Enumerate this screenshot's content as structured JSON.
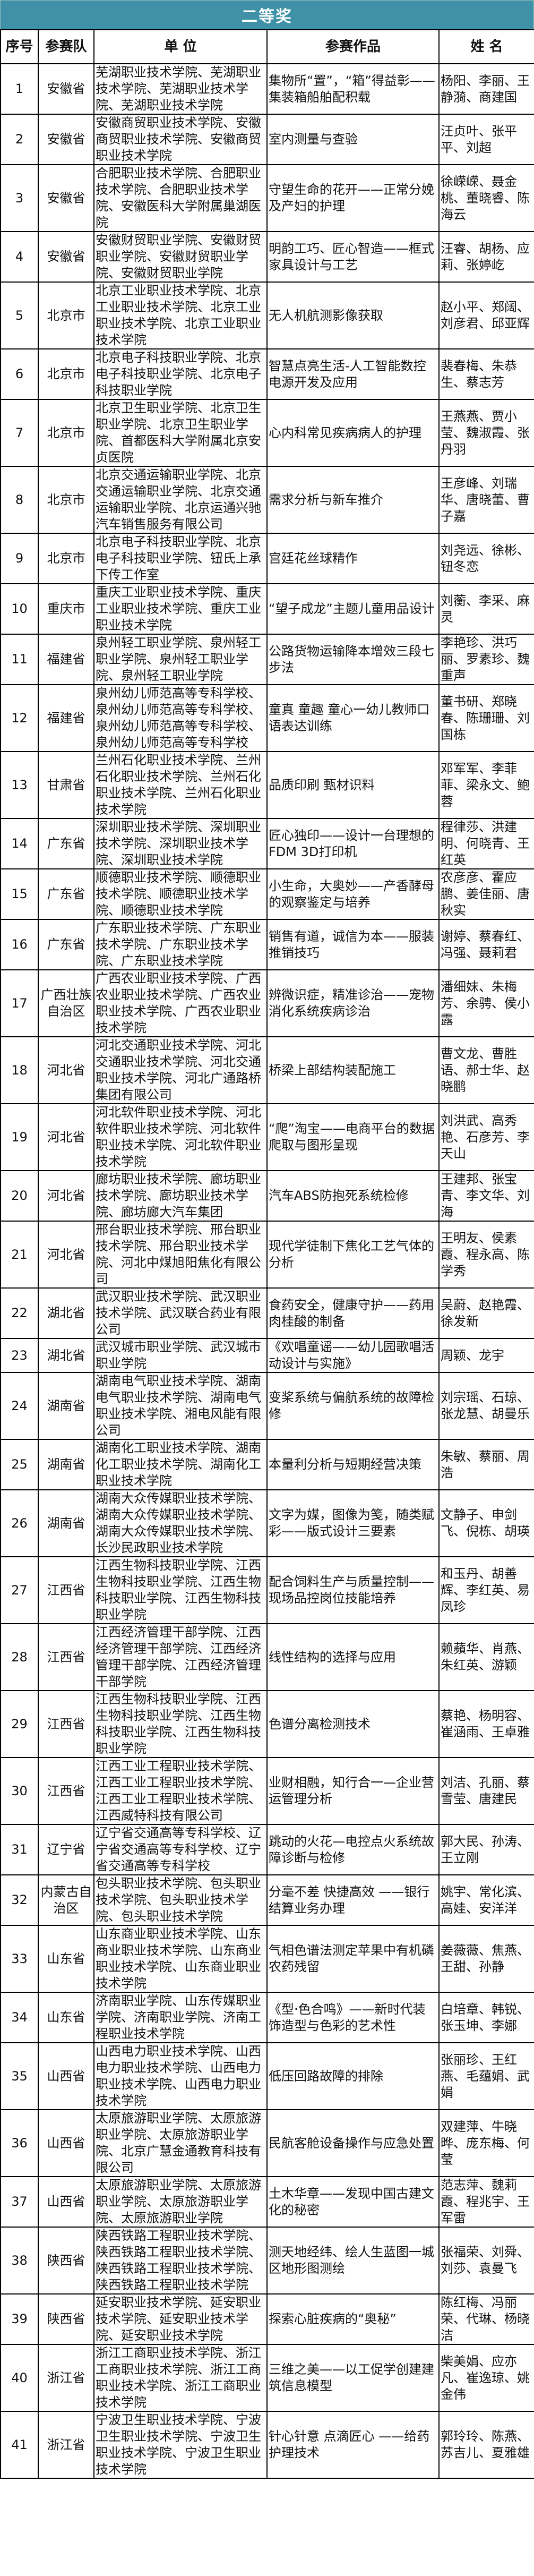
{
  "title": "二等奖",
  "header": {
    "seq": "序号",
    "team": "参赛队",
    "unit": "单 位",
    "work": "参赛作品",
    "names": "姓 名"
  },
  "colors": {
    "title_bar": "#3e91a7",
    "title_text": "#ffffff",
    "border": "#000000"
  },
  "rows": [
    {
      "seq": "1",
      "team": "安徽省",
      "unit": "芜湖职业技术学院、芜湖职业技术学院、芜湖职业技术学院、芜湖职业技术学院",
      "work": "集物所“置”，“箱”得益彰——集装箱船舶配积载",
      "names": "杨阳、李丽、王静漪、商建国"
    },
    {
      "seq": "2",
      "team": "安徽省",
      "unit": "安徽商贸职业技术学院、安徽商贸职业技术学院、安徽商贸职业技术学院",
      "work": "室内测量与查验",
      "names": "汪贞叶、张平平、刘超"
    },
    {
      "seq": "3",
      "team": "安徽省",
      "unit": "合肥职业技术学院、合肥职业技术学院、合肥职业技术学院、安徽医科大学附属巢湖医院",
      "work": "守望生命的花开——正常分娩及产妇的护理",
      "names": "徐嵘嵘、聂金桃、董晓睿、陈海云"
    },
    {
      "seq": "4",
      "team": "安徽省",
      "unit": "安徽财贸职业学院、安徽财贸职业学院、安徽财贸职业学院、安徽财贸职业学院",
      "work": "明韵工巧、匠心智造——框式家具设计与工艺",
      "names": "汪睿、胡杨、应莉、张婷屹"
    },
    {
      "seq": "5",
      "team": "北京市",
      "unit": "北京工业职业技术学院、北京工业职业技术学院、北京工业职业技术学院、北京工业职业技术学院",
      "work": "无人机航测影像获取",
      "names": "赵小平、郑阔、刘彦君、邱亚辉"
    },
    {
      "seq": "6",
      "team": "北京市",
      "unit": "北京电子科技职业学院、北京电子科技职业学院、北京电子科技职业学院",
      "work": "智慧点亮生活-人工智能数控电源开发及应用",
      "names": "裴春梅、朱恭生、蔡志芳"
    },
    {
      "seq": "7",
      "team": "北京市",
      "unit": "北京卫生职业学院、北京卫生职业学院、北京卫生职业学院、首都医科大学附属北京安贞医院",
      "work": "心内科常见疾病病人的护理",
      "names": "王燕燕、贾小莹、魏淑霞、张丹羽"
    },
    {
      "seq": "8",
      "team": "北京市",
      "unit": "北京交通运输职业学院、北京交通运输职业学院、北京交通运输职业学院、北京运通兴驰汽车销售服务有限公司",
      "work": "需求分析与新车推介",
      "names": "王彦峰、刘瑞华、唐晓蕾、曹子嘉"
    },
    {
      "seq": "9",
      "team": "北京市",
      "unit": "北京电子科技职业学院、北京电子科技职业学院、钮氏上承下传工作室",
      "work": "宫廷花丝球精作",
      "names": "刘尧远、徐彬、钮冬恋"
    },
    {
      "seq": "10",
      "team": "重庆市",
      "unit": "重庆工业职业技术学院、重庆工业职业技术学院、重庆工业职业技术学院",
      "work": "“望子成龙”主题儿童用品设计",
      "names": "刘蘅、李采、麻灵"
    },
    {
      "seq": "11",
      "team": "福建省",
      "unit": "泉州轻工职业学院、泉州轻工职业学院、泉州轻工职业学院、泉州轻工职业学院",
      "work": "公路货物运输降本增效三段七步法",
      "names": "李艳珍、洪巧丽、罗素珍、魏重声"
    },
    {
      "seq": "12",
      "team": "福建省",
      "unit": "泉州幼儿师范高等专科学校、泉州幼儿师范高等专科学校、泉州幼儿师范高等专科学校、泉州幼儿师范高等专科学校",
      "work": "童真 童趣 童心一幼儿教师口语表达训练",
      "names": "董书研、郑晓春、陈珊珊、刘国栋"
    },
    {
      "seq": "13",
      "team": "甘肃省",
      "unit": "兰州石化职业技术学院、兰州石化职业技术学院、兰州石化职业技术学院、兰州石化职业技术学院",
      "work": "品质印刷  甄材识料",
      "names": "邓军军、李菲菲、梁永文、鲍蓉"
    },
    {
      "seq": "14",
      "team": "广东省",
      "unit": "深圳职业技术学院、深圳职业技术学院、深圳职业技术学院、深圳职业技术学院",
      "work": "匠心独印——设计一台理想的FDM 3D打印机",
      "names": "程律莎、洪建明、何晓青、王红英"
    },
    {
      "seq": "15",
      "team": "广东省",
      "unit": "顺德职业技术学院、顺德职业技术学院、顺德职业技术学院、顺德职业技术学院",
      "work": "小生命，大奥妙——产香酵母的观察鉴定与培养",
      "names": "农彦彦、霍应鹏、姜佳丽、唐秋实"
    },
    {
      "seq": "16",
      "team": "广东省",
      "unit": "广东职业技术学院、广东职业技术学院、广东职业技术学院、广东职业技术学院",
      "work": "销售有道，诚信为本——服装推销技巧",
      "names": "谢婷、蔡春红、冯强、聂莉君"
    },
    {
      "seq": "17",
      "team": "广西壮族自治区",
      "unit": "广西农业职业技术学院、广西农业职业技术学院、广西农业职业技术学院、广西农业职业技术学院",
      "work": "辨微识症，精准诊治——宠物消化系统疾病诊治",
      "names": "潘细妹、朱梅芳、余骋、侯小露"
    },
    {
      "seq": "18",
      "team": "河北省",
      "unit": "河北交通职业技术学院、河北交通职业技术学院、河北交通职业技术学院、河北广通路桥集团有限公司",
      "work": "桥梁上部结构装配施工",
      "names": "曹文龙、曹胜语、郝士华、赵晓鹏"
    },
    {
      "seq": "19",
      "team": "河北省",
      "unit": "河北软件职业技术学院、河北软件职业技术学院、河北软件职业技术学院、河北软件职业技术学院",
      "work": "“爬”淘宝——电商平台的数据爬取与图形呈现",
      "names": "刘洪武、高秀艳、石彦芳、李天山"
    },
    {
      "seq": "20",
      "team": "河北省",
      "unit": "廊坊职业技术学院、廊坊职业技术学院、廊坊职业技术学院、廊坊廊大汽车集团",
      "work": "汽车ABS防抱死系统检修",
      "names": "王建邦、张宝青、李文华、刘海"
    },
    {
      "seq": "21",
      "team": "河北省",
      "unit": "邢台职业技术学院、邢台职业技术学院、邢台职业技术学院、河北中煤旭阳焦化有限公司",
      "work": "现代学徒制下焦化工艺气体的分析",
      "names": "王明友、侯素霞、程永高、陈学秀"
    },
    {
      "seq": "22",
      "team": "湖北省",
      "unit": "武汉职业技术学院、武汉职业技术学院、武汉联合药业有限公司",
      "work": "食药安全，健康守护——药用肉桂酸的制备",
      "names": "吴蔚、赵艳霞、徐发新"
    },
    {
      "seq": "23",
      "team": "湖北省",
      "unit": "武汉城市职业学院、武汉城市职业学院",
      "work": "《欢唱童谣——幼儿园歌唱活动设计与实施》",
      "names": "周颖、龙宇"
    },
    {
      "seq": "24",
      "team": "湖南省",
      "unit": "湖南电气职业技术学院、湖南电气职业技术学院、湖南电气职业技术学院、湘电风能有限公司",
      "work": "变桨系统与偏航系统的故障检修",
      "names": "刘宗瑶、石琼、张龙慧、胡曼乐"
    },
    {
      "seq": "25",
      "team": "湖南省",
      "unit": "湖南化工职业技术学院、湖南化工职业技术学院、湖南化工职业技术学院",
      "work": "本量利分析与短期经营决策",
      "names": "朱敏、蔡丽、周浩"
    },
    {
      "seq": "26",
      "team": "湖南省",
      "unit": "湖南大众传媒职业技术学院、湖南大众传媒职业技术学院、湖南大众传媒职业技术学院、长沙民政职业技术学院",
      "work": "文字为媒，图像为笺，随类赋彩——版式设计三要素",
      "names": "文静子、申剑飞、倪栋、胡瑛"
    },
    {
      "seq": "27",
      "team": "江西省",
      "unit": "江西生物科技职业学院、江西生物科技职业学院、江西生物科技职业学院、江西生物科技职业学院",
      "work": "配合饲料生产与质量控制——现场品控岗位技能培养",
      "names": "和玉丹、胡善辉、李红英、易凤珍"
    },
    {
      "seq": "28",
      "team": "江西省",
      "unit": "江西经济管理干部学院、江西经济管理干部学院、江西经济管理干部学院、江西经济管理干部学院",
      "work": "线性结构的选择与应用",
      "names": "赖蘋华、肖燕、朱红英、游颖"
    },
    {
      "seq": "29",
      "team": "江西省",
      "unit": "江西生物科技职业学院、江西生物科技职业学院、江西生物科技职业学院、江西生物科技职业学院",
      "work": "色谱分离检测技术",
      "names": "蔡艳、杨明容、崔涵雨、王卓雅"
    },
    {
      "seq": "30",
      "team": "江西省",
      "unit": "江西工业工程职业技术学院、江西工业工程职业技术学院、江西工业工程职业技术学院、江西威特科技有限公司",
      "work": "业财相融，知行合一—企业营运管理分析",
      "names": "刘洁、孔丽、蔡雪莹、唐建民"
    },
    {
      "seq": "31",
      "team": "辽宁省",
      "unit": "辽宁省交通高等专科学校、辽宁省交通高等专科学校、辽宁省交通高等专科学校",
      "work": "跳动的火花—电控点火系统故障诊断与检修",
      "names": "郭大民、孙涛、王立刚"
    },
    {
      "seq": "32",
      "team": "内蒙古自治区",
      "unit": "包头职业技术学院、包头职业技术学院、包头职业技术学院、包头职业技术学院",
      "work": "分毫不差 快捷高效 ——银行结算业务办理",
      "names": "姚宇、常化滨、高娃、安洋洋"
    },
    {
      "seq": "33",
      "team": "山东省",
      "unit": "山东商业职业技术学院、山东商业职业技术学院、山东商业职业技术学院、山东商业职业技术学院",
      "work": "气相色谱法测定苹果中有机磷农药残留",
      "names": "姜薇薇、焦燕、王甜、孙静"
    },
    {
      "seq": "34",
      "team": "山东省",
      "unit": "济南职业学院、山东传媒职业学院、济南职业学院、济南工程职业技术学院",
      "work": "《型·色合鸣》——新时代装饰造型与色彩的艺术性",
      "names": "白培章、韩锐、张玉坤、李娜"
    },
    {
      "seq": "35",
      "team": "山西省",
      "unit": "山西电力职业技术学院、山西电力职业技术学院、山西电力职业技术学院、山西电力职业技术学院",
      "work": "低压回路故障的排除",
      "names": "张丽珍、王红燕、毛蕴娟、武娟"
    },
    {
      "seq": "36",
      "team": "山西省",
      "unit": "太原旅游职业学院、太原旅游职业学院、太原旅游职业学院、北京广慧金通教育科技有限公司",
      "work": "民航客舱设备操作与应急处置",
      "names": "双建萍、牛晓晔、庞东梅、何莹"
    },
    {
      "seq": "37",
      "team": "山西省",
      "unit": "太原旅游职业学院、太原旅游职业学院、太原旅游职业学院、太原旅游职业学院",
      "work": "土木华章——发现中国古建文化的秘密",
      "names": "范志萍、魏莉霞、程兆宇、王军雷"
    },
    {
      "seq": "38",
      "team": "陕西省",
      "unit": "陕西铁路工程职业技术学院、陕西铁路工程职业技术学院、陕西铁路工程职业技术学院、陕西铁路工程职业技术学院",
      "work": "测天地经纬、绘人生蓝图一城区地形图测绘",
      "names": "张福荣、刘舜、刘莎、袁曼飞"
    },
    {
      "seq": "39",
      "team": "陕西省",
      "unit": "延安职业技术学院、延安职业技术学院、延安职业技术学院、延安职业技术学院",
      "work": "探索心脏疾病的“奥秘”",
      "names": "陈红梅、冯丽荣、代琳、杨晓洁"
    },
    {
      "seq": "40",
      "team": "浙江省",
      "unit": "浙江工商职业技术学院、浙江工商职业技术学院、浙江工商职业技术学院、浙江工商职业技术学院",
      "work": "三维之美——以工促学创建建筑信息模型",
      "names": "柴美娟、应亦凡、崔逸琼、姚金伟"
    },
    {
      "seq": "41",
      "team": "浙江省",
      "unit": "宁波卫生职业技术学院、宁波卫生职业技术学院、宁波卫生职业技术学院、宁波卫生职业技术学院",
      "work": "针心针意 点滴匠心 ——给药护理技术",
      "names": "郭玲玲、陈燕、苏吉儿、夏雅雄"
    }
  ]
}
